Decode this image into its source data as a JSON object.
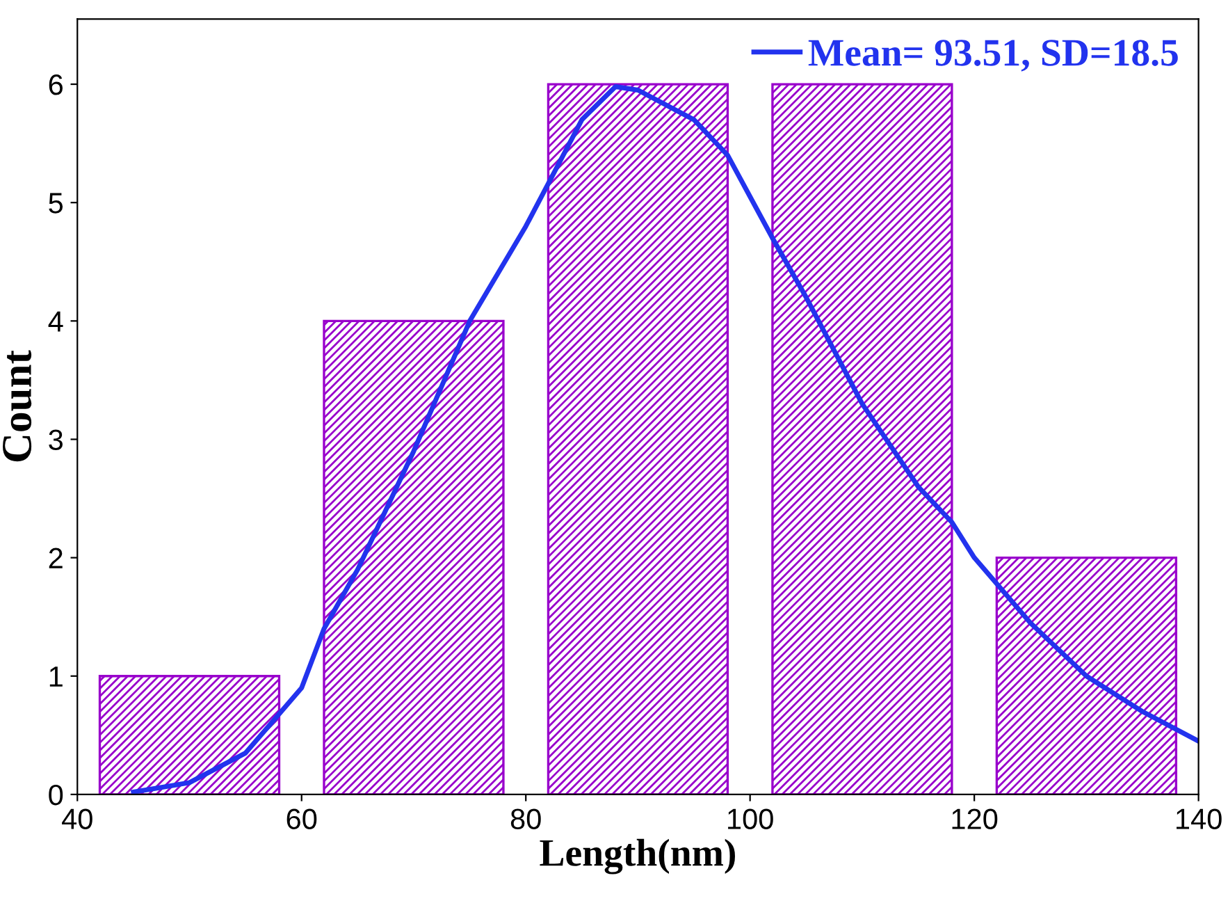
{
  "chart_data": {
    "type": "histogram",
    "xlabel": "Length(nm)",
    "ylabel": "Count",
    "bins": [
      40,
      60,
      80,
      100,
      120,
      140
    ],
    "values": [
      1,
      4,
      6,
      6,
      2
    ],
    "color": "#9900cc",
    "series": [
      {
        "type": "line",
        "name": "Mean= 93.51, SD=18.5",
        "color": "#2233ee",
        "x": [
          45,
          50,
          55,
          60,
          62,
          65,
          70,
          75,
          80,
          85,
          88,
          90,
          95,
          98,
          102,
          105,
          110,
          115,
          118,
          120,
          125,
          130,
          135,
          140
        ],
        "values": [
          0.02,
          0.1,
          0.35,
          0.9,
          1.4,
          1.9,
          2.9,
          4.0,
          4.8,
          5.7,
          5.98,
          5.95,
          5.7,
          5.4,
          4.7,
          4.2,
          3.3,
          2.6,
          2.3,
          2.0,
          1.45,
          1.0,
          0.7,
          0.45
        ]
      }
    ],
    "xlim": [
      40,
      140
    ],
    "ylim": [
      0,
      6.55
    ],
    "xticks": [
      40,
      60,
      80,
      100,
      120,
      140
    ],
    "yticks": [
      0,
      1,
      2,
      3,
      4,
      5,
      6
    ],
    "grid": false,
    "legend": "top right"
  }
}
